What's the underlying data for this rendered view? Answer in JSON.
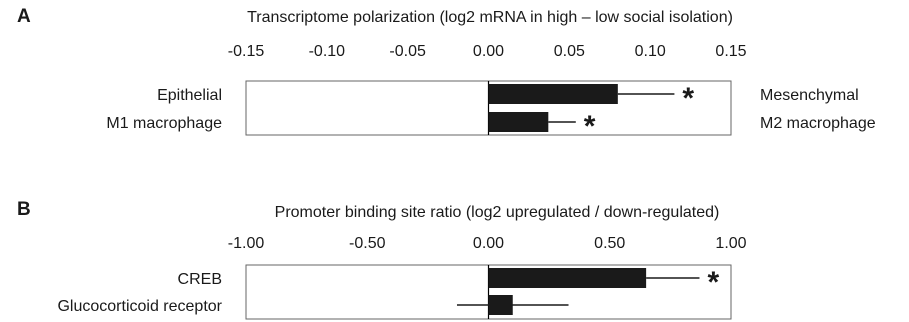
{
  "chart_data": [
    {
      "type": "bar",
      "orientation": "horizontal",
      "panel_label": "A",
      "title": "Transcriptome polarization (log2 mRNA in high – low social isolation)",
      "xlim": [
        -0.15,
        0.15
      ],
      "tick_values": [
        -0.15,
        -0.1,
        -0.05,
        0.0,
        0.05,
        0.1,
        0.15
      ],
      "tick_labels": [
        "-0.15",
        "-0.10",
        "-0.05",
        "0.00",
        "0.05",
        "0.10",
        "0.15"
      ],
      "categories": [
        "Epithelial",
        "M1 macrophage"
      ],
      "opposite_labels": [
        "Mesenchymal",
        "M2 macrophage"
      ],
      "values": [
        0.08,
        0.037
      ],
      "error_low": [
        0.08,
        0.037
      ],
      "error_high": [
        0.115,
        0.054
      ],
      "annotations": [
        "*",
        "*"
      ],
      "bar_color": "#1a1a1a"
    },
    {
      "type": "bar",
      "orientation": "horizontal",
      "panel_label": "B",
      "title": "Promoter binding site ratio (log2 upregulated / down-regulated)",
      "xlim": [
        -1.0,
        1.0
      ],
      "tick_values": [
        -1.0,
        -0.5,
        0.0,
        0.5,
        1.0
      ],
      "tick_labels": [
        "-1.00",
        "-0.50",
        "0.00",
        "0.50",
        "1.00"
      ],
      "categories": [
        "CREB",
        "Glucocorticoid receptor"
      ],
      "opposite_labels": [
        "",
        ""
      ],
      "values": [
        0.65,
        0.1
      ],
      "error_low": [
        0.65,
        -0.13
      ],
      "error_high": [
        0.87,
        0.33
      ],
      "annotations": [
        "*",
        ""
      ],
      "bar_color": "#1a1a1a"
    }
  ]
}
